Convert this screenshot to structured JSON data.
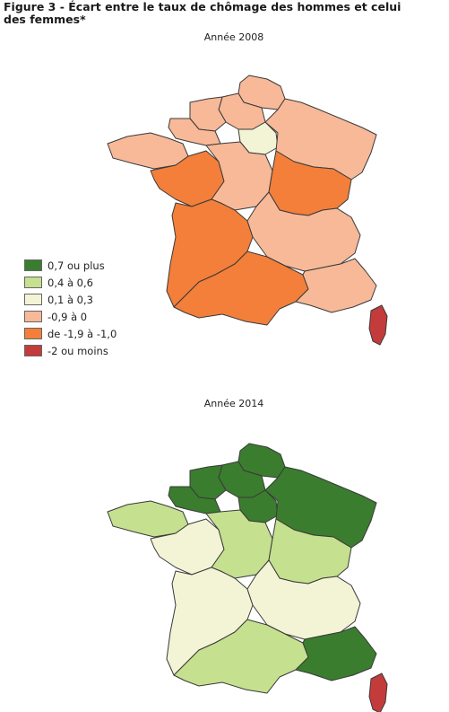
{
  "figure": {
    "title": "Figure 3 - Écart entre le taux de chômage des hommes et celui des femmes*"
  },
  "legend": {
    "items": [
      {
        "label": "0,7 ou plus",
        "color": "#3a7d2e"
      },
      {
        "label": "0,4 à 0,6",
        "color": "#c5e08f"
      },
      {
        "label": "0,1 à 0,3",
        "color": "#f3f3d6"
      },
      {
        "label": "-0,9 à 0",
        "color": "#f7b998"
      },
      {
        "label": "de -1,9 à -1,0",
        "color": "#f37f3a"
      },
      {
        "label": "-2 ou moins",
        "color": "#c43b3b"
      }
    ]
  },
  "maps": [
    {
      "year_label": "Année 2008",
      "regions": {
        "nord": 3,
        "picardie": 3,
        "ile-de-france": 2,
        "haute-normandie": 3,
        "basse-normandie": 3,
        "bretagne": 3,
        "pays-de-la-loire": 4,
        "centre": 3,
        "champagne-lorraine-alsace": 3,
        "bourgogne-franche-comte": 4,
        "poitou-aquitaine-limousin": 4,
        "auvergne-rhone-alpes": 3,
        "midi-languedoc": 4,
        "paca": 3,
        "corse": 5
      }
    },
    {
      "year_label": "Année 2014",
      "regions": {
        "nord": 0,
        "picardie": 0,
        "ile-de-france": 0,
        "haute-normandie": 0,
        "basse-normandie": 0,
        "bretagne": 1,
        "pays-de-la-loire": 2,
        "centre": 1,
        "champagne-lorraine-alsace": 0,
        "bourgogne-franche-comte": 1,
        "poitou-aquitaine-limousin": 2,
        "auvergne-rhone-alpes": 2,
        "midi-languedoc": 1,
        "paca": 0,
        "corse": 5
      }
    }
  ]
}
